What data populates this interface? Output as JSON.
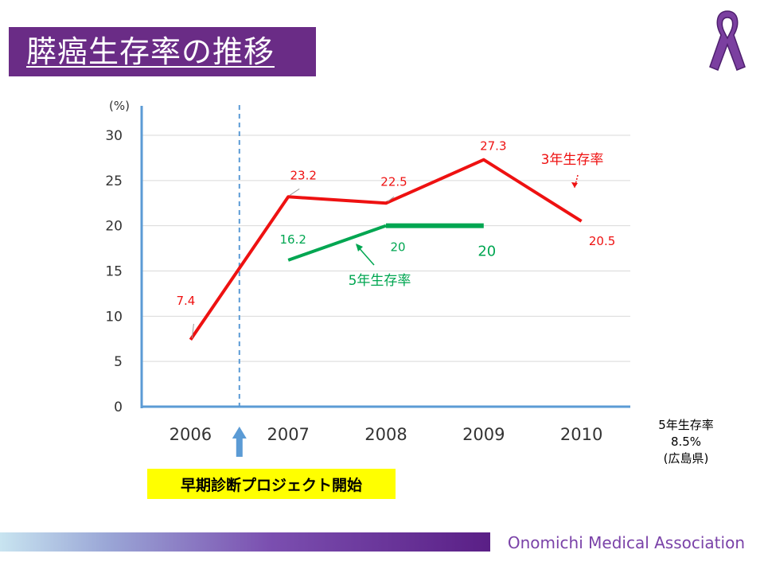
{
  "slide": {
    "title": "膵癌生存率の推移",
    "footer": "Onomichi Medical Association",
    "ribbon_icon": "awareness-ribbon-icon",
    "ribbon_color": "#7b3fa0"
  },
  "hiroshima_note": {
    "line1": "5年生存率",
    "line2": "8.5%",
    "line3": "(広島県)"
  },
  "project_callout": "早期診断プロジェクト開始",
  "chart_data": {
    "type": "line",
    "x": [
      "2006",
      "2007",
      "2008",
      "2009",
      "2010"
    ],
    "ylabel": "(%)",
    "ylim": [
      0,
      30
    ],
    "yticks": [
      "0",
      "5",
      "10",
      "15",
      "20",
      "25",
      "30"
    ],
    "grid": true,
    "project_start_marker": "between 2006 and 2007",
    "series": [
      {
        "name": "3年生存率",
        "color": "#ee1111",
        "values": [
          7.4,
          23.2,
          22.5,
          27.3,
          20.5
        ],
        "labels": [
          "7.4",
          "23.2",
          "22.5",
          "27.3",
          "20.5"
        ]
      },
      {
        "name": "5年生存率",
        "color": "#00a651",
        "values": [
          null,
          16.2,
          20,
          20,
          null
        ],
        "labels": [
          "",
          "16.2",
          "20",
          "20",
          ""
        ]
      }
    ]
  }
}
